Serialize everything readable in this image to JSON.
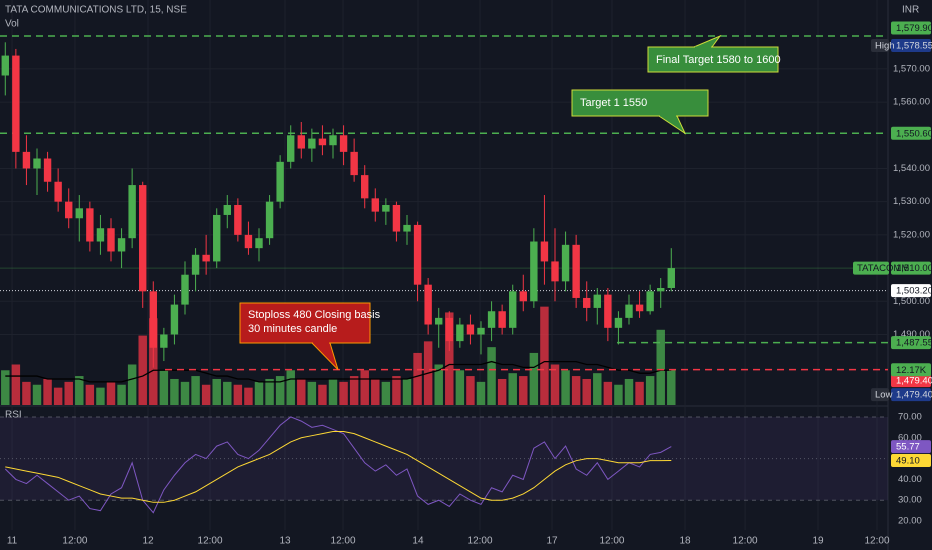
{
  "chart_data": {
    "type": "candlestick",
    "title": "TATA COMMUNICATIONS LTD, 15, NSE",
    "currency": "INR",
    "volume_label": "Vol",
    "rsi_label": "RSI",
    "colors": {
      "up": "#4caf50",
      "down": "#f23645"
    },
    "ylim": [
      1468.76,
      1590.74
    ],
    "yticks": [
      {
        "value": 1570,
        "label": "1,570.00"
      },
      {
        "value": 1560,
        "label": "1,560.00"
      },
      {
        "value": 1540,
        "label": "1,540.00"
      },
      {
        "value": 1530,
        "label": "1,530.00"
      },
      {
        "value": 1520,
        "label": "1,520.00"
      },
      {
        "value": 1500,
        "label": "1,500.00"
      },
      {
        "value": 1490,
        "label": "1,490.00"
      }
    ],
    "xlim": [
      -0.5,
      83.5
    ],
    "xticks": [
      {
        "value": 0.64,
        "label": "11"
      },
      {
        "value": 6.59,
        "label": "12:00"
      },
      {
        "value": 13.5,
        "label": "12"
      },
      {
        "value": 19.37,
        "label": "12:00"
      },
      {
        "value": 26.46,
        "label": "13"
      },
      {
        "value": 31.95,
        "label": "12:00"
      },
      {
        "value": 39.04,
        "label": "14"
      },
      {
        "value": 44.91,
        "label": "12:00"
      },
      {
        "value": 51.72,
        "label": "17"
      },
      {
        "value": 57.39,
        "label": "12:00"
      },
      {
        "value": 64.3,
        "label": "18"
      },
      {
        "value": 69.98,
        "label": "12:00"
      },
      {
        "value": 76.88,
        "label": "19"
      },
      {
        "value": 82.46,
        "label": "12:00"
      }
    ],
    "candles": [
      [
        1568,
        1578,
        1562,
        1574
      ],
      [
        1574,
        1576,
        1540,
        1545
      ],
      [
        1545,
        1550,
        1535,
        1540
      ],
      [
        1540,
        1546,
        1532,
        1543
      ],
      [
        1543,
        1545,
        1533,
        1536
      ],
      [
        1536,
        1540,
        1527,
        1530
      ],
      [
        1530,
        1534,
        1522,
        1525
      ],
      [
        1525,
        1532,
        1518,
        1528
      ],
      [
        1528,
        1530,
        1515,
        1518
      ],
      [
        1518,
        1526,
        1514,
        1522
      ],
      [
        1522,
        1525,
        1512,
        1515
      ],
      [
        1515,
        1522,
        1510,
        1519
      ],
      [
        1519,
        1540,
        1516,
        1535
      ],
      [
        1535,
        1536,
        1498,
        1503
      ],
      [
        1503,
        1506,
        1480,
        1486
      ],
      [
        1486,
        1492,
        1482,
        1490
      ],
      [
        1490,
        1502,
        1487,
        1499
      ],
      [
        1499,
        1512,
        1496,
        1508
      ],
      [
        1508,
        1516,
        1503,
        1514
      ],
      [
        1514,
        1520,
        1508,
        1512
      ],
      [
        1512,
        1528,
        1510,
        1526
      ],
      [
        1526,
        1532,
        1522,
        1529
      ],
      [
        1529,
        1531,
        1518,
        1520
      ],
      [
        1520,
        1524,
        1514,
        1516
      ],
      [
        1516,
        1522,
        1512,
        1519
      ],
      [
        1519,
        1532,
        1517,
        1530
      ],
      [
        1530,
        1544,
        1528,
        1542
      ],
      [
        1542,
        1553,
        1540,
        1550
      ],
      [
        1550,
        1554,
        1543,
        1546
      ],
      [
        1546,
        1552,
        1542,
        1549
      ],
      [
        1549,
        1553,
        1544,
        1547
      ],
      [
        1547,
        1552,
        1543,
        1550
      ],
      [
        1550,
        1553,
        1541,
        1545
      ],
      [
        1545,
        1549,
        1536,
        1538
      ],
      [
        1538,
        1541,
        1528,
        1531
      ],
      [
        1531,
        1534,
        1524,
        1527
      ],
      [
        1527,
        1531,
        1523,
        1529
      ],
      [
        1529,
        1530,
        1518,
        1521
      ],
      [
        1521,
        1526,
        1517,
        1523
      ],
      [
        1523,
        1524,
        1500,
        1505
      ],
      [
        1505,
        1507,
        1490,
        1493
      ],
      [
        1493,
        1498,
        1486,
        1495
      ],
      [
        1495,
        1497,
        1485,
        1488
      ],
      [
        1488,
        1495,
        1486,
        1493
      ],
      [
        1493,
        1496,
        1487,
        1490
      ],
      [
        1490,
        1494,
        1484,
        1492
      ],
      [
        1492,
        1500,
        1488,
        1497
      ],
      [
        1497,
        1499,
        1490,
        1492
      ],
      [
        1492,
        1505,
        1490,
        1503
      ],
      [
        1503,
        1508,
        1497,
        1500
      ],
      [
        1500,
        1522,
        1498,
        1518
      ],
      [
        1518,
        1532,
        1505,
        1512
      ],
      [
        1512,
        1522,
        1500,
        1506
      ],
      [
        1506,
        1521,
        1503,
        1517
      ],
      [
        1517,
        1520,
        1498,
        1501
      ],
      [
        1501,
        1506,
        1494,
        1498
      ],
      [
        1498,
        1504,
        1493,
        1502
      ],
      [
        1502,
        1504,
        1488,
        1492
      ],
      [
        1492,
        1497,
        1487,
        1495
      ],
      [
        1495,
        1502,
        1493,
        1499
      ],
      [
        1499,
        1503,
        1495,
        1497
      ],
      [
        1497,
        1505,
        1496,
        1503
      ],
      [
        1503,
        1507,
        1498,
        1504
      ],
      [
        1504,
        1516,
        1503,
        1510
      ]
    ],
    "volume": {
      "vlim": [
        0,
        140
      ],
      "values": [
        12,
        14,
        8,
        7,
        9,
        6,
        8,
        10,
        7,
        6,
        8,
        7,
        14,
        24,
        30,
        12,
        9,
        8,
        10,
        7,
        9,
        8,
        7,
        6,
        8,
        9,
        10,
        12,
        9,
        8,
        7,
        9,
        8,
        10,
        12,
        9,
        8,
        10,
        9,
        18,
        22,
        14,
        32,
        12,
        10,
        8,
        20,
        9,
        11,
        10,
        18,
        34,
        14,
        12,
        10,
        9,
        11,
        8,
        7,
        9,
        8,
        10,
        26,
        12.17
      ],
      "ma": [
        10,
        10,
        10,
        10,
        9,
        9,
        9,
        9,
        8,
        8,
        8,
        8,
        9,
        10,
        12,
        12,
        12,
        12,
        12,
        11,
        10,
        10,
        9,
        9,
        8,
        8,
        8,
        9,
        9,
        9,
        9,
        9,
        9,
        9,
        9,
        9,
        9,
        9,
        9,
        10,
        11,
        12,
        14,
        14,
        14,
        14,
        15,
        14,
        14,
        13,
        13,
        15,
        15,
        15,
        15,
        14,
        14,
        13,
        12,
        12,
        11,
        11,
        12,
        12
      ],
      "ma_color": "#000000",
      "last": {
        "value": 12.17,
        "label": "12.17K"
      }
    },
    "levels": [
      {
        "value": 1579.9,
        "label": "1,579.90",
        "color": "#4caf50",
        "start": -0.5
      },
      {
        "value": 1550.6,
        "label": "1,550.60",
        "color": "#4caf50",
        "start": -0.5
      },
      {
        "value": 1487.55,
        "label": "1,487.55",
        "color": "#4caf50",
        "start": 57.87
      },
      {
        "value": 1479.4,
        "label": "1,479.40",
        "color": "#f23645",
        "start": 15.11
      }
    ],
    "high": {
      "name": "High",
      "value": 1578.55,
      "label": "1,578.55"
    },
    "low": {
      "name": "Low",
      "value": 1479.4,
      "label": "1,479.40"
    },
    "last": {
      "name": "TATACOMM",
      "value": 1510,
      "label": "1,510.00"
    },
    "current": {
      "value": 1503.2,
      "label": "1,503.20"
    },
    "annotations": [
      {
        "text": [
          "Final Target 1580 to 1600"
        ],
        "color": "#388e3c"
      },
      {
        "text": [
          "Target 1 1550"
        ],
        "color": "#388e3c"
      },
      {
        "text": [
          "Stoploss 480 Closing basis",
          "30 minutes candle"
        ],
        "color": "#b71c1c"
      }
    ],
    "rsi": {
      "ylim": [
        15.7,
        74.3
      ],
      "yticks": [
        {
          "value": 70,
          "label": "70.00"
        },
        {
          "value": 60,
          "label": "60.00"
        },
        {
          "value": 40,
          "label": "40.00"
        },
        {
          "value": 30,
          "label": "30.00"
        },
        {
          "value": 20,
          "label": "20.00"
        }
      ],
      "bands": [
        70,
        50,
        30
      ],
      "color": "#7e57c2",
      "ma_color": "#fdd835",
      "values": [
        45,
        40,
        38,
        42,
        38,
        34,
        30,
        32,
        26,
        25,
        33,
        36,
        48,
        30,
        24,
        35,
        42,
        48,
        52,
        50,
        56,
        58,
        52,
        50,
        54,
        60,
        66,
        70,
        68,
        65,
        66,
        64,
        62,
        55,
        48,
        44,
        47,
        42,
        45,
        32,
        28,
        30,
        27,
        33,
        30,
        28,
        36,
        34,
        42,
        40,
        55,
        58,
        50,
        56,
        45,
        42,
        48,
        40,
        44,
        48,
        46,
        52,
        53,
        55.77
      ],
      "ma": [
        46,
        45,
        44,
        43,
        42,
        41,
        39,
        37,
        35,
        33,
        32,
        31,
        31,
        30,
        29,
        29,
        30,
        32,
        34,
        37,
        40,
        43,
        46,
        48,
        50,
        52,
        55,
        58,
        60,
        61,
        62,
        63,
        63,
        62,
        60,
        58,
        56,
        54,
        52,
        49,
        46,
        43,
        40,
        37,
        34,
        31,
        30,
        30,
        31,
        33,
        36,
        40,
        44,
        47,
        49,
        50,
        50,
        49,
        48,
        48,
        48,
        49,
        49,
        49.1
      ],
      "last": {
        "value": 55.77,
        "label": "55.77"
      },
      "ma_last": {
        "value": 49.1,
        "label": "49.10"
      }
    }
  }
}
